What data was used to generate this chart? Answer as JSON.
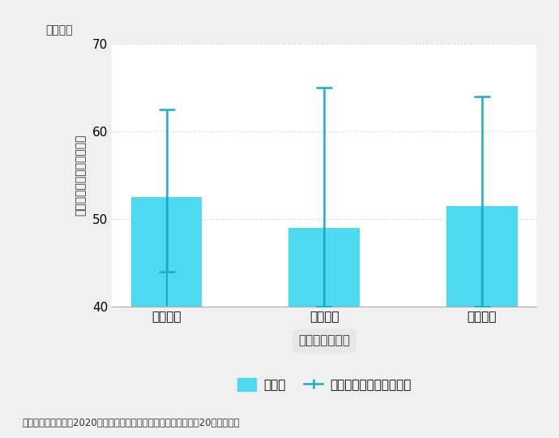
{
  "categories": [
    "正常分娩",
    "異常分娩",
    "分娩全体"
  ],
  "means": [
    52.5,
    49.0,
    51.5
  ],
  "errors_upper": [
    10.0,
    16.0,
    12.5
  ],
  "errors_lower": [
    8.5,
    9.0,
    11.5
  ],
  "ylim": [
    40,
    70
  ],
  "yticks": [
    40,
    50,
    60,
    70
  ],
  "bar_color": "#4DD9F0",
  "errorbar_color": "#1AABCC",
  "ylabel": "出産費用の平均（件／円）",
  "xlabel": "分娩特性の区分",
  "unit_label": "（万円）",
  "legend_bar_label": "平均値",
  "legend_error_label": "エラーバー（標準唄差）",
  "footnote": "データ：年間平均（2020年），協会けんぽ　サンプル数：延べ終20万件の一部",
  "background_color": "#f0f0f0",
  "ylabel_bg_color": "#e8e8e8",
  "plot_background_color": "#ffffff",
  "bar_width": 0.45,
  "grid_color": "#cccccc",
  "baseline": 40
}
